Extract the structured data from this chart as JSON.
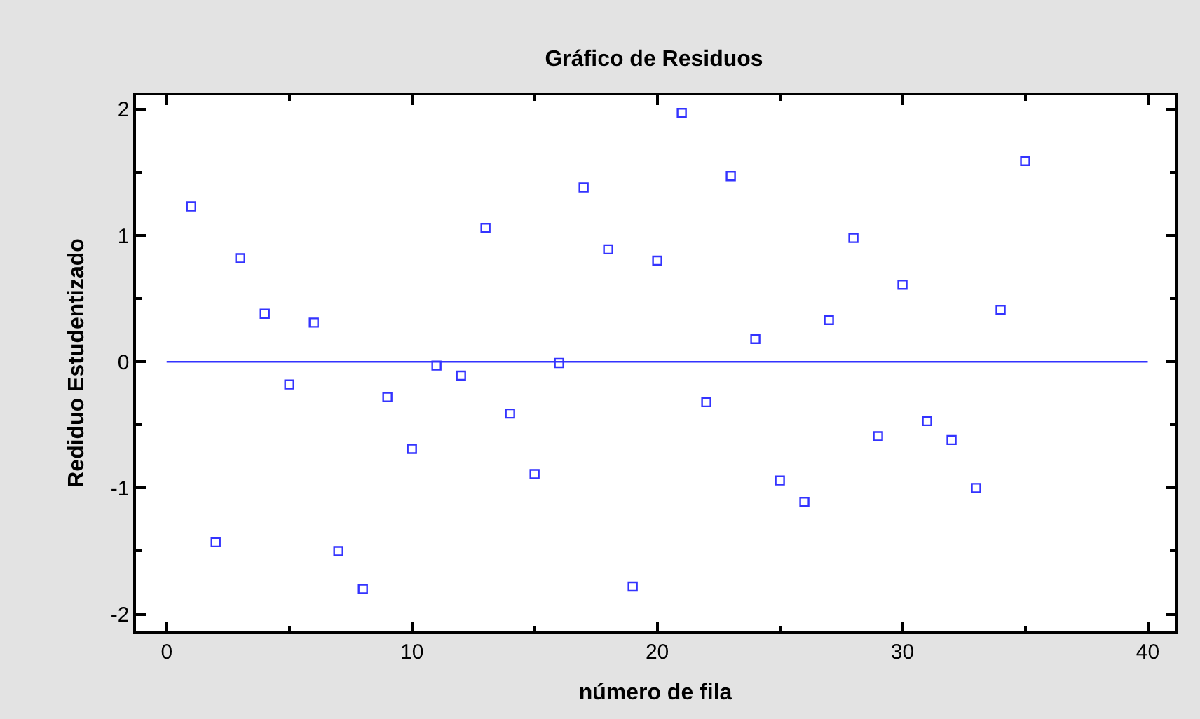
{
  "chart_data": {
    "type": "scatter",
    "title": "Gráfico de Residuos",
    "xlabel": "número de fila",
    "ylabel": "Rediduo Estudentizado",
    "x": [
      1,
      2,
      3,
      4,
      5,
      6,
      7,
      8,
      9,
      10,
      11,
      12,
      13,
      14,
      15,
      16,
      17,
      18,
      19,
      20,
      21,
      22,
      23,
      24,
      25,
      26,
      27,
      28,
      29,
      30,
      31,
      32,
      33,
      34,
      35
    ],
    "series": [
      {
        "color": "#3333ff",
        "values": [
          1.23,
          -1.43,
          0.82,
          0.38,
          -0.18,
          0.31,
          -1.5,
          -1.8,
          -0.28,
          -0.69,
          -0.03,
          -0.11,
          1.06,
          -0.41,
          -0.89,
          -0.01,
          1.38,
          0.89,
          -1.78,
          0.8,
          1.97,
          -0.32,
          1.47,
          0.18,
          -0.94,
          -1.11,
          0.33,
          0.98,
          -0.59,
          0.61,
          -0.47,
          -0.62,
          -1.0,
          0.41,
          1.59
        ]
      }
    ],
    "xlim": [
      -1.25,
      41.1
    ],
    "ylim": [
      -2.13,
      2.11
    ],
    "xticks": [
      0,
      10,
      20,
      30,
      40
    ],
    "yticks": [
      -2,
      -1,
      0,
      1,
      2
    ],
    "ref_lines": [
      {
        "axis": "y",
        "value": 0,
        "color": "#3333ff"
      }
    ],
    "grid": false,
    "marker": "square"
  }
}
